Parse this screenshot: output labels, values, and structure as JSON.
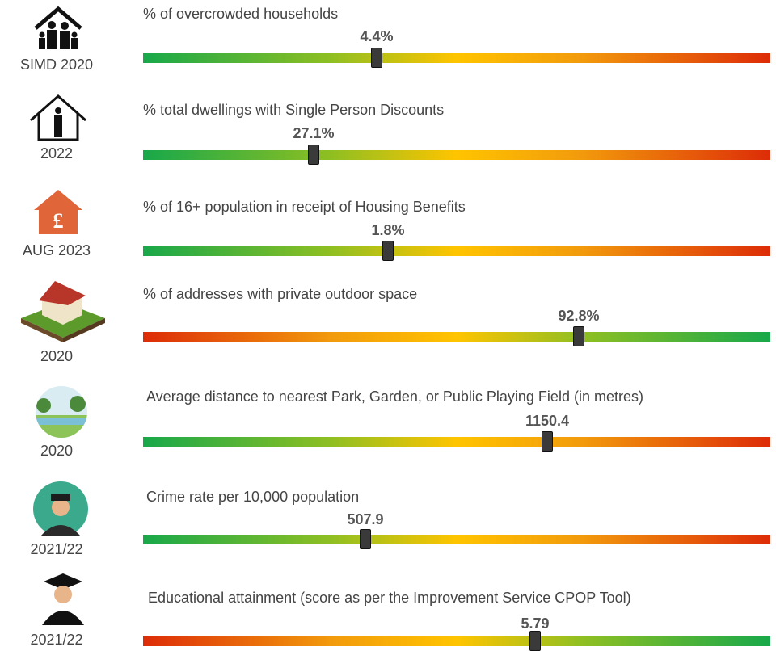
{
  "rows": [
    {
      "year": "SIMD 2020",
      "title": "% of overcrowded households",
      "value": "4.4%"
    },
    {
      "year": "2022",
      "title": "% total dwellings with Single Person Discounts",
      "value": "27.1%"
    },
    {
      "year": "AUG 2023",
      "title": "% of 16+ population in receipt of Housing Benefits",
      "value": "1.8%"
    },
    {
      "year": "2020",
      "title": "% of addresses with private outdoor space",
      "value": "92.8%"
    },
    {
      "year": "2020",
      "title": "Average distance to nearest Park, Garden, or Public Playing Field (in metres)",
      "value": "1150.4"
    },
    {
      "year": "2021/22",
      "title": "Crime rate per 10,000 population",
      "value": "507.9"
    },
    {
      "year": "2021/22",
      "title": "Educational attainment (score as per the Improvement Service CPOP Tool)",
      "value": "5.79"
    }
  ]
}
